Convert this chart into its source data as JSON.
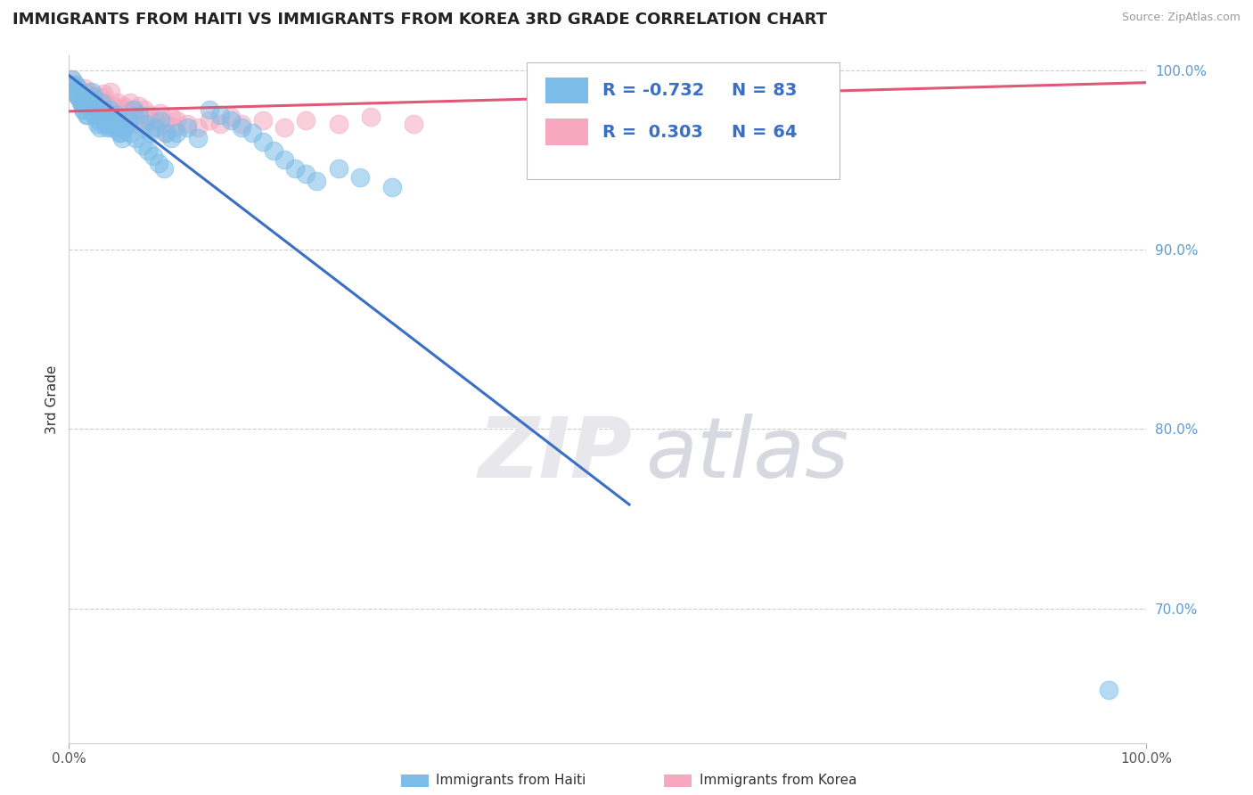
{
  "title": "IMMIGRANTS FROM HAITI VS IMMIGRANTS FROM KOREA 3RD GRADE CORRELATION CHART",
  "source": "Source: ZipAtlas.com",
  "ylabel": "3rd Grade",
  "legend_label1": "Immigrants from Haiti",
  "legend_label2": "Immigrants from Korea",
  "R1": -0.732,
  "N1": 83,
  "R2": 0.303,
  "N2": 64,
  "color1": "#7bbde8",
  "color2": "#f5a8c0",
  "line_color1": "#3a6fc4",
  "line_color2": "#e05878",
  "tick_color": "#5b9bd5",
  "x_min": 0.0,
  "x_max": 1.0,
  "y_min": 0.625,
  "y_max": 1.008,
  "scatter1_x": [
    0.004,
    0.006,
    0.008,
    0.01,
    0.012,
    0.014,
    0.016,
    0.018,
    0.02,
    0.022,
    0.024,
    0.026,
    0.028,
    0.03,
    0.032,
    0.034,
    0.036,
    0.038,
    0.04,
    0.042,
    0.044,
    0.046,
    0.048,
    0.05,
    0.055,
    0.06,
    0.065,
    0.07,
    0.075,
    0.08,
    0.085,
    0.09,
    0.095,
    0.1,
    0.11,
    0.12,
    0.13,
    0.14,
    0.15,
    0.16,
    0.17,
    0.18,
    0.19,
    0.2,
    0.21,
    0.22,
    0.23,
    0.25,
    0.27,
    0.3,
    0.003,
    0.005,
    0.007,
    0.009,
    0.011,
    0.013,
    0.015,
    0.017,
    0.019,
    0.021,
    0.023,
    0.025,
    0.027,
    0.029,
    0.031,
    0.033,
    0.035,
    0.037,
    0.039,
    0.041,
    0.043,
    0.045,
    0.047,
    0.049,
    0.052,
    0.057,
    0.062,
    0.068,
    0.073,
    0.078,
    0.083,
    0.088,
    0.965
  ],
  "scatter1_y": [
    0.988,
    0.992,
    0.99,
    0.985,
    0.982,
    0.978,
    0.975,
    0.982,
    0.978,
    0.985,
    0.975,
    0.97,
    0.978,
    0.982,
    0.975,
    0.97,
    0.975,
    0.978,
    0.972,
    0.968,
    0.975,
    0.97,
    0.965,
    0.968,
    0.972,
    0.978,
    0.975,
    0.97,
    0.965,
    0.968,
    0.972,
    0.965,
    0.962,
    0.965,
    0.968,
    0.962,
    0.978,
    0.975,
    0.972,
    0.968,
    0.965,
    0.96,
    0.955,
    0.95,
    0.945,
    0.942,
    0.938,
    0.945,
    0.94,
    0.935,
    0.995,
    0.992,
    0.988,
    0.985,
    0.982,
    0.978,
    0.985,
    0.975,
    0.982,
    0.988,
    0.978,
    0.975,
    0.972,
    0.968,
    0.975,
    0.972,
    0.968,
    0.972,
    0.968,
    0.975,
    0.972,
    0.968,
    0.965,
    0.962,
    0.968,
    0.965,
    0.962,
    0.958,
    0.955,
    0.952,
    0.948,
    0.945,
    0.655
  ],
  "scatter2_x": [
    0.003,
    0.006,
    0.009,
    0.012,
    0.015,
    0.018,
    0.021,
    0.024,
    0.027,
    0.03,
    0.033,
    0.036,
    0.039,
    0.042,
    0.045,
    0.048,
    0.051,
    0.054,
    0.057,
    0.06,
    0.065,
    0.07,
    0.075,
    0.08,
    0.085,
    0.09,
    0.095,
    0.1,
    0.11,
    0.12,
    0.13,
    0.14,
    0.15,
    0.16,
    0.18,
    0.2,
    0.22,
    0.25,
    0.28,
    0.32,
    0.002,
    0.004,
    0.007,
    0.011,
    0.014,
    0.017,
    0.02,
    0.023,
    0.026,
    0.029,
    0.032,
    0.035,
    0.038,
    0.041,
    0.044,
    0.047,
    0.05,
    0.055,
    0.062,
    0.068,
    0.075,
    0.082,
    0.09,
    0.098
  ],
  "scatter2_y": [
    0.992,
    0.988,
    0.985,
    0.982,
    0.99,
    0.988,
    0.985,
    0.98,
    0.978,
    0.985,
    0.982,
    0.978,
    0.988,
    0.978,
    0.982,
    0.978,
    0.98,
    0.978,
    0.982,
    0.978,
    0.98,
    0.978,
    0.975,
    0.972,
    0.976,
    0.97,
    0.974,
    0.972,
    0.97,
    0.968,
    0.972,
    0.97,
    0.974,
    0.97,
    0.972,
    0.968,
    0.972,
    0.97,
    0.974,
    0.97,
    0.995,
    0.99,
    0.986,
    0.982,
    0.988,
    0.984,
    0.981,
    0.986,
    0.982,
    0.98,
    0.987,
    0.98,
    0.977,
    0.98,
    0.977,
    0.974,
    0.978,
    0.975,
    0.972,
    0.968,
    0.972,
    0.968,
    0.965,
    0.968
  ],
  "ytick_positions": [
    0.7,
    0.8,
    0.9,
    1.0
  ],
  "ytick_labels": [
    "70.0%",
    "80.0%",
    "90.0%",
    "100.0%"
  ],
  "xtick_positions": [
    0.0,
    1.0
  ],
  "xtick_labels": [
    "0.0%",
    "100.0%"
  ],
  "blue_line_x0": 0.0,
  "blue_line_y0": 0.997,
  "blue_line_x1": 0.52,
  "blue_line_y1": 0.758,
  "pink_line_x0": 0.0,
  "pink_line_y0": 0.977,
  "pink_line_x1": 1.0,
  "pink_line_y1": 0.993,
  "watermark_zip": "ZIP",
  "watermark_atlas": "atlas",
  "grid_color": "#cccccc",
  "background_color": "#ffffff",
  "title_fontsize": 13,
  "axis_label_fontsize": 11,
  "tick_fontsize": 11
}
